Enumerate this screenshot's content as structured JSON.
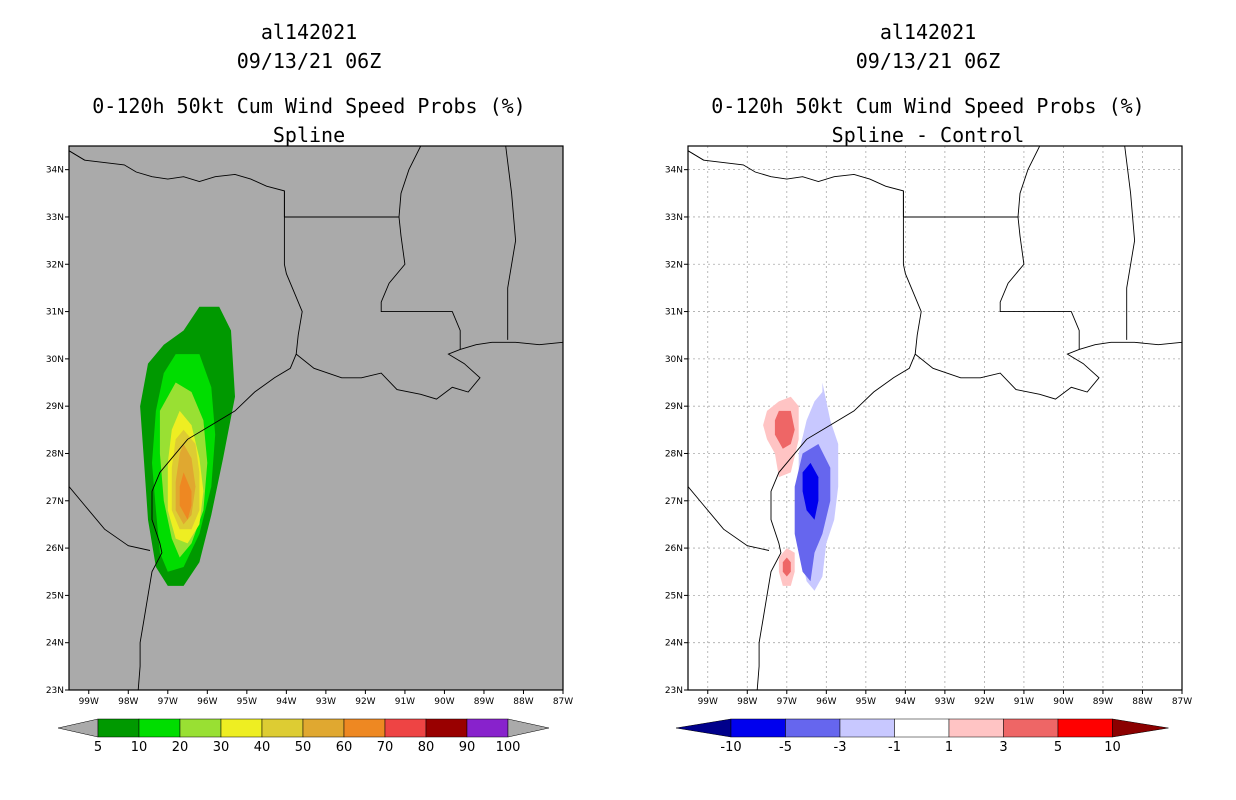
{
  "left": {
    "storm": "al142021",
    "date": "09/13/21 06Z",
    "title": "0-120h 50kt Cum Wind Speed Probs (%)",
    "subtitle": "Spline"
  },
  "right": {
    "storm": "al142021",
    "date": "09/13/21 06Z",
    "title": "0-120h 50kt Cum Wind Speed Probs (%)",
    "subtitle": "Spline - Control"
  },
  "chart_data": [
    {
      "type": "contour-map",
      "title": "0-120h 50kt Cum Wind Speed Probs (%)",
      "subtitle": "Spline",
      "xlim": [
        -99.5,
        -87
      ],
      "ylim": [
        23,
        34.5
      ],
      "x_ticks": [
        "99W",
        "98W",
        "97W",
        "96W",
        "95W",
        "94W",
        "93W",
        "92W",
        "91W",
        "90W",
        "89W",
        "88W",
        "87W"
      ],
      "y_ticks": [
        "23N",
        "24N",
        "25N",
        "26N",
        "27N",
        "28N",
        "29N",
        "30N",
        "31N",
        "32N",
        "33N",
        "34N"
      ],
      "grid": false,
      "colorbar": {
        "labels": [
          "5",
          "10",
          "20",
          "30",
          "40",
          "50",
          "60",
          "70",
          "80",
          "90",
          "100"
        ],
        "colors": [
          "#009900",
          "#00dd00",
          "#99e033",
          "#eeee22",
          "#ddcc33",
          "#e0a830",
          "#ee8822",
          "#ee4444",
          "#990000",
          "#8822cc"
        ],
        "end_color": "#aaaaaa"
      },
      "contour_levels": [
        {
          "level": 5,
          "lon": [
            -96.6,
            -96.2,
            -95.7,
            -95.4,
            -95.3,
            -95.6,
            -95.9,
            -96.2,
            -96.6,
            -97.0,
            -97.3,
            -97.5,
            -97.6,
            -97.7,
            -97.5,
            -97.1
          ],
          "lat": [
            30.6,
            31.1,
            31.1,
            30.6,
            29.2,
            27.9,
            26.7,
            25.7,
            25.2,
            25.2,
            25.6,
            26.6,
            27.8,
            29.0,
            29.9,
            30.3
          ]
        },
        {
          "level": 10,
          "lon": [
            -96.8,
            -96.2,
            -95.9,
            -95.8,
            -95.9,
            -96.2,
            -96.6,
            -97.0,
            -97.2,
            -97.3,
            -97.4,
            -97.3,
            -97.1
          ],
          "lat": [
            30.1,
            30.1,
            29.4,
            28.4,
            27.3,
            26.3,
            25.6,
            25.5,
            25.9,
            26.8,
            27.8,
            28.9,
            29.7
          ]
        },
        {
          "level": 20,
          "lon": [
            -96.8,
            -96.4,
            -96.1,
            -96.0,
            -96.1,
            -96.4,
            -96.7,
            -96.9,
            -97.1,
            -97.2,
            -97.2
          ],
          "lat": [
            29.5,
            29.3,
            28.7,
            27.8,
            26.8,
            26.1,
            25.8,
            26.2,
            27.0,
            28.0,
            28.9
          ]
        },
        {
          "level": 30,
          "lon": [
            -96.7,
            -96.4,
            -96.2,
            -96.1,
            -96.2,
            -96.5,
            -96.8,
            -97.0,
            -97.0,
            -96.9
          ],
          "lat": [
            28.9,
            28.6,
            27.9,
            27.2,
            26.5,
            26.1,
            26.2,
            26.8,
            27.8,
            28.5
          ]
        },
        {
          "level": 40,
          "lon": [
            -96.6,
            -96.3,
            -96.2,
            -96.2,
            -96.4,
            -96.7,
            -96.9,
            -96.9,
            -96.8
          ],
          "lat": [
            28.5,
            28.2,
            27.6,
            26.8,
            26.4,
            26.4,
            26.8,
            27.7,
            28.3
          ]
        },
        {
          "level": 50,
          "lon": [
            -96.6,
            -96.4,
            -96.3,
            -96.4,
            -96.6,
            -96.8,
            -96.8,
            -96.7
          ],
          "lat": [
            28.2,
            27.9,
            27.3,
            26.7,
            26.5,
            26.8,
            27.4,
            28.0
          ]
        },
        {
          "level": 60,
          "lon": [
            -96.6,
            -96.4,
            -96.4,
            -96.5,
            -96.7,
            -96.7
          ],
          "lat": [
            27.6,
            27.2,
            26.9,
            26.6,
            26.9,
            27.3
          ]
        }
      ]
    },
    {
      "type": "contour-map",
      "title": "0-120h 50kt Cum Wind Speed Probs (%)",
      "subtitle": "Spline - Control",
      "xlim": [
        -99.5,
        -87
      ],
      "ylim": [
        23,
        34.5
      ],
      "x_ticks": [
        "99W",
        "98W",
        "97W",
        "96W",
        "95W",
        "94W",
        "93W",
        "92W",
        "91W",
        "90W",
        "89W",
        "88W",
        "87W"
      ],
      "y_ticks": [
        "23N",
        "24N",
        "25N",
        "26N",
        "27N",
        "28N",
        "29N",
        "30N",
        "31N",
        "32N",
        "33N",
        "34N"
      ],
      "grid": true,
      "colorbar": {
        "labels": [
          "-10",
          "-5",
          "-3",
          "-1",
          "1",
          "3",
          "5",
          "10"
        ],
        "colors": [
          "#0000ee",
          "#6666ee",
          "#c8c8ff",
          "#ffffff",
          "#ffc4c4",
          "#ee6666",
          "#ff0000"
        ],
        "end_left_color": "#00008b",
        "end_right_color": "#8b0000"
      },
      "contour_levels": [
        {
          "level": 1,
          "lon": [
            -97.2,
            -96.9,
            -96.7,
            -96.7,
            -96.9,
            -97.2,
            -97.3,
            -97.5,
            -97.6,
            -97.5
          ],
          "lat": [
            29.1,
            29.2,
            29.0,
            28.3,
            27.6,
            27.5,
            28.0,
            28.3,
            28.6,
            28.9
          ]
        },
        {
          "level": 3,
          "lon": [
            -97.2,
            -96.9,
            -96.8,
            -96.9,
            -97.1,
            -97.3,
            -97.3
          ],
          "lat": [
            28.9,
            28.9,
            28.5,
            28.2,
            28.1,
            28.4,
            28.7
          ]
        },
        {
          "level": 1,
          "lon": [
            -97.0,
            -96.8,
            -96.8,
            -96.9,
            -97.1,
            -97.2,
            -97.2
          ],
          "lat": [
            26.0,
            25.9,
            25.5,
            25.2,
            25.2,
            25.5,
            25.8
          ]
        },
        {
          "level": 3,
          "lon": [
            -97.0,
            -96.9,
            -96.9,
            -97.0,
            -97.1,
            -97.1
          ],
          "lat": [
            25.8,
            25.7,
            25.5,
            25.4,
            25.5,
            25.7
          ]
        },
        {
          "level": -1,
          "lon": [
            -96.1,
            -95.9,
            -95.7,
            -95.7,
            -95.8,
            -96.0,
            -96.1,
            -96.3,
            -96.5,
            -96.7,
            -96.7,
            -96.7,
            -96.5,
            -96.3,
            -96.1
          ],
          "lat": [
            29.5,
            28.7,
            28.2,
            27.3,
            26.6,
            26.1,
            25.4,
            25.1,
            25.3,
            26.1,
            27.0,
            28.0,
            28.7,
            29.1,
            29.3
          ]
        },
        {
          "level": -3,
          "lon": [
            -96.2,
            -95.9,
            -95.9,
            -96.1,
            -96.3,
            -96.4,
            -96.6,
            -96.8,
            -96.8,
            -96.6
          ],
          "lat": [
            28.2,
            27.7,
            27.0,
            26.3,
            25.9,
            25.3,
            25.5,
            26.3,
            27.3,
            28.0
          ]
        },
        {
          "level": -5,
          "lon": [
            -96.4,
            -96.2,
            -96.2,
            -96.3,
            -96.5,
            -96.6,
            -96.6
          ],
          "lat": [
            27.8,
            27.5,
            27.0,
            26.6,
            26.8,
            27.2,
            27.6
          ]
        }
      ]
    }
  ]
}
